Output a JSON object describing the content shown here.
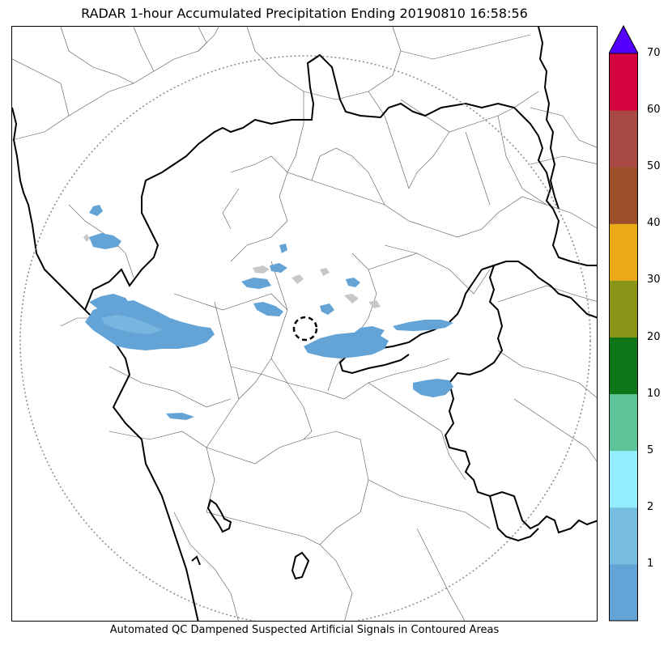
{
  "title": "RADAR 1-hour Accumulated Precipitation Ending 20190810 16:58:56",
  "caption": "Automated QC Dampened Suspected Artificial Signals in Contoured Areas",
  "colorbar": {
    "levels": [
      "1",
      "2",
      "5",
      "10",
      "20",
      "30",
      "40",
      "50",
      "60",
      "70"
    ],
    "colors": [
      "#63a3d6",
      "#76bde1",
      "#94eefe",
      "#5dc49a",
      "#0e7519",
      "#8a9419",
      "#e9a919",
      "#9b4f28",
      "#a84a43",
      "#d5033f"
    ],
    "extend_color": "#5500ff"
  },
  "map": {
    "rain_color": "#63a3d6",
    "rain_light_color": "#7ab5e0",
    "clutter_color": "#c8c8c8",
    "radar_range_ring": "dotted",
    "radar_site_marker": "dashed-circle"
  }
}
